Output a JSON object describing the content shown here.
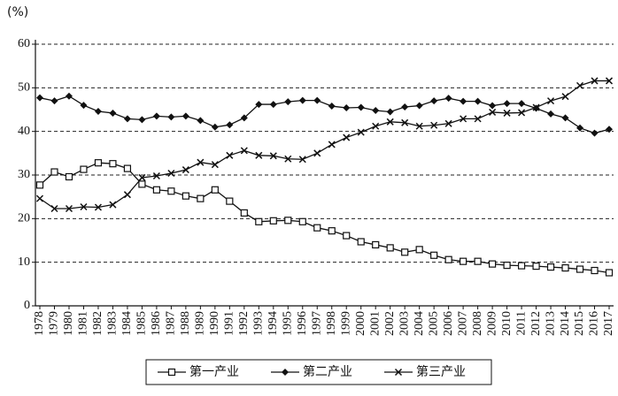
{
  "chart_data": {
    "type": "line",
    "y_label": "(%)",
    "categories": [
      "1978",
      "1979",
      "1980",
      "1981",
      "1982",
      "1983",
      "1984",
      "1985",
      "1986",
      "1987",
      "1988",
      "1989",
      "1990",
      "1991",
      "1992",
      "1993",
      "1994",
      "1995",
      "1996",
      "1997",
      "1998",
      "1999",
      "2000",
      "2001",
      "2002",
      "2003",
      "2004",
      "2005",
      "2006",
      "2007",
      "2008",
      "2009",
      "2010",
      "2011",
      "2012",
      "2013",
      "2014",
      "2015",
      "2016",
      "2017"
    ],
    "series": [
      {
        "name": "第一产业",
        "color": "#111111",
        "marker": "square",
        "values": [
          27.7,
          30.7,
          29.6,
          31.3,
          32.8,
          32.6,
          31.5,
          27.9,
          26.6,
          26.3,
          25.2,
          24.6,
          26.6,
          24.0,
          21.3,
          19.3,
          19.5,
          19.6,
          19.3,
          17.9,
          17.2,
          16.1,
          14.7,
          14.0,
          13.3,
          12.3,
          12.9,
          11.6,
          10.6,
          10.2,
          10.2,
          9.6,
          9.3,
          9.2,
          9.1,
          8.9,
          8.7,
          8.4,
          8.1,
          7.6
        ]
      },
      {
        "name": "第二产业",
        "color": "#111111",
        "marker": "diamond",
        "values": [
          47.7,
          47.0,
          48.1,
          46.0,
          44.6,
          44.2,
          42.9,
          42.7,
          43.5,
          43.3,
          43.5,
          42.5,
          41.0,
          41.5,
          43.1,
          46.2,
          46.2,
          46.8,
          47.1,
          47.1,
          45.8,
          45.4,
          45.5,
          44.8,
          44.5,
          45.6,
          45.9,
          47.0,
          47.6,
          46.9,
          46.9,
          45.9,
          46.4,
          46.4,
          45.3,
          44.0,
          43.1,
          40.8,
          39.6,
          40.5
        ]
      },
      {
        "name": "第三产业",
        "color": "#111111",
        "marker": "cross",
        "values": [
          24.6,
          22.3,
          22.3,
          22.7,
          22.6,
          23.2,
          25.5,
          29.4,
          29.8,
          30.4,
          31.2,
          32.9,
          32.4,
          34.5,
          35.6,
          34.5,
          34.4,
          33.7,
          33.6,
          35.0,
          37.0,
          38.6,
          39.8,
          41.2,
          42.2,
          42.0,
          41.2,
          41.4,
          41.8,
          42.9,
          42.9,
          44.4,
          44.2,
          44.3,
          45.5,
          47.0,
          48.0,
          50.5,
          51.6,
          51.6
        ]
      }
    ],
    "ylim": [
      0,
      60
    ],
    "yticks": [
      0,
      10,
      20,
      30,
      40,
      50,
      60
    ],
    "grid": true,
    "legend": "bottom"
  }
}
